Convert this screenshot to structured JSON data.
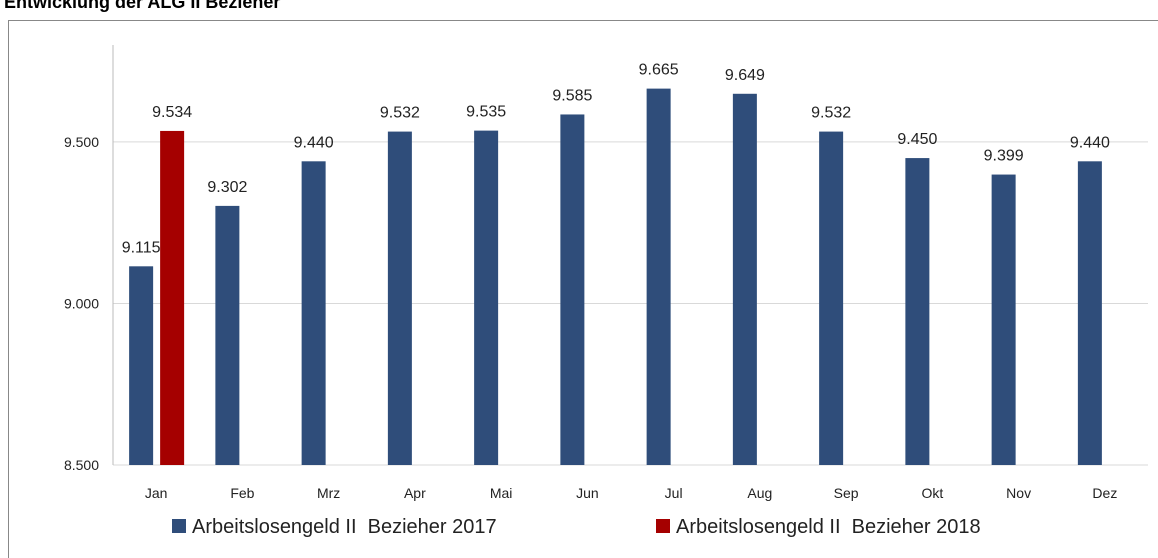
{
  "chart_data": {
    "type": "bar",
    "title": "Entwicklung der ALG II Bezieher",
    "categories": [
      "Jan",
      "Feb",
      "Mrz",
      "Apr",
      "Mai",
      "Jun",
      "Jul",
      "Aug",
      "Sep",
      "Okt",
      "Nov",
      "Dez"
    ],
    "series": [
      {
        "name": "Arbeitslosengeld II  Bezieher 2017",
        "color": "#2f4d7a",
        "values": [
          9115,
          9302,
          9440,
          9532,
          9535,
          9585,
          9665,
          9649,
          9532,
          9450,
          9399,
          9440
        ],
        "value_labels": [
          "9.115",
          "9.302",
          "9.440",
          "9.532",
          "9.535",
          "9.585",
          "9.665",
          "9.649",
          "9.532",
          "9.450",
          "9.399",
          "9.440"
        ]
      },
      {
        "name": "Arbeitslosengeld II  Bezieher 2018",
        "color": "#a50000",
        "values": [
          9534,
          null,
          null,
          null,
          null,
          null,
          null,
          null,
          null,
          null,
          null,
          null
        ],
        "value_labels": [
          "9.534",
          null,
          null,
          null,
          null,
          null,
          null,
          null,
          null,
          null,
          null,
          null
        ]
      }
    ],
    "ylim": [
      8500,
      9800
    ],
    "yticks": [
      {
        "value": 8500,
        "label": "8.500"
      },
      {
        "value": 9000,
        "label": "9.000"
      },
      {
        "value": 9500,
        "label": "9.500"
      }
    ],
    "grid": true,
    "legend": "bottom"
  }
}
